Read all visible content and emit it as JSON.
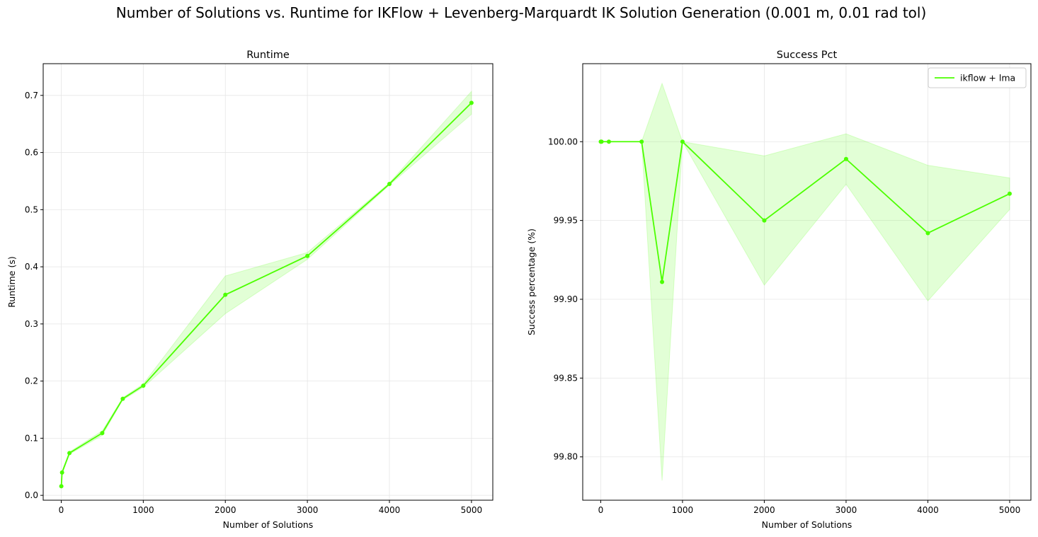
{
  "figure": {
    "suptitle": "Number of Solutions vs. Runtime for IKFlow + Levenberg-Marquardt IK Solution Generation (0.001 m, 0.01 rad tol)"
  },
  "colors": {
    "line": "#4cff00",
    "band": "#4cff00",
    "grid": "#e6e6e6",
    "axis": "#000000"
  },
  "chart_data": [
    {
      "type": "line",
      "title": "Runtime",
      "xlabel": "Number of Solutions",
      "ylabel": "Runtime (s)",
      "xlim": [
        -220,
        5260
      ],
      "ylim": [
        -0.0085,
        0.7555
      ],
      "xticks": [
        0,
        1000,
        2000,
        3000,
        4000,
        5000
      ],
      "xtick_labels": [
        "0",
        "1000",
        "2000",
        "3000",
        "4000",
        "5000"
      ],
      "yticks": [
        0.0,
        0.1,
        0.2,
        0.3,
        0.4,
        0.5,
        0.6,
        0.7
      ],
      "ytick_labels": [
        "0.0",
        "0.1",
        "0.2",
        "0.3",
        "0.4",
        "0.5",
        "0.6",
        "0.7"
      ],
      "grid": true,
      "series": [
        {
          "x": [
            1,
            10,
            100,
            500,
            750,
            1000,
            2000,
            3000,
            4000,
            5000
          ],
          "y": [
            0.016,
            0.04,
            0.074,
            0.109,
            0.169,
            0.192,
            0.351,
            0.419,
            0.545,
            0.687
          ],
          "lower": [
            0.014,
            0.037,
            0.072,
            0.105,
            0.167,
            0.189,
            0.318,
            0.413,
            0.543,
            0.667
          ],
          "upper": [
            0.018,
            0.043,
            0.076,
            0.113,
            0.171,
            0.195,
            0.384,
            0.425,
            0.547,
            0.707
          ]
        }
      ]
    },
    {
      "type": "line",
      "title": "Success Pct",
      "xlabel": "Number of Solutions",
      "ylabel": "Success percentage (%)",
      "xlim": [
        -220,
        5260
      ],
      "ylim": [
        99.7725,
        100.0495
      ],
      "xticks": [
        0,
        1000,
        2000,
        3000,
        4000,
        5000
      ],
      "xtick_labels": [
        "0",
        "1000",
        "2000",
        "3000",
        "4000",
        "5000"
      ],
      "yticks": [
        99.8,
        99.85,
        99.9,
        99.95,
        100.0
      ],
      "ytick_labels": [
        "99.80",
        "99.85",
        "99.90",
        "99.95",
        "100.00"
      ],
      "grid": true,
      "legend": {
        "placement": "top-right",
        "entries": [
          "ikflow + lma"
        ]
      },
      "series": [
        {
          "name": "ikflow + lma",
          "x": [
            1,
            10,
            100,
            500,
            750,
            1000,
            2000,
            3000,
            4000,
            5000
          ],
          "y": [
            100.0,
            100.0,
            100.0,
            100.0,
            99.911,
            100.0,
            99.95,
            99.989,
            99.942,
            99.967
          ],
          "lower": [
            100.0,
            100.0,
            100.0,
            100.0,
            99.785,
            100.0,
            99.909,
            99.973,
            99.899,
            99.957
          ],
          "upper": [
            100.0,
            100.0,
            100.0,
            100.0,
            100.037,
            100.0,
            99.991,
            100.005,
            99.985,
            99.977
          ]
        }
      ]
    }
  ]
}
